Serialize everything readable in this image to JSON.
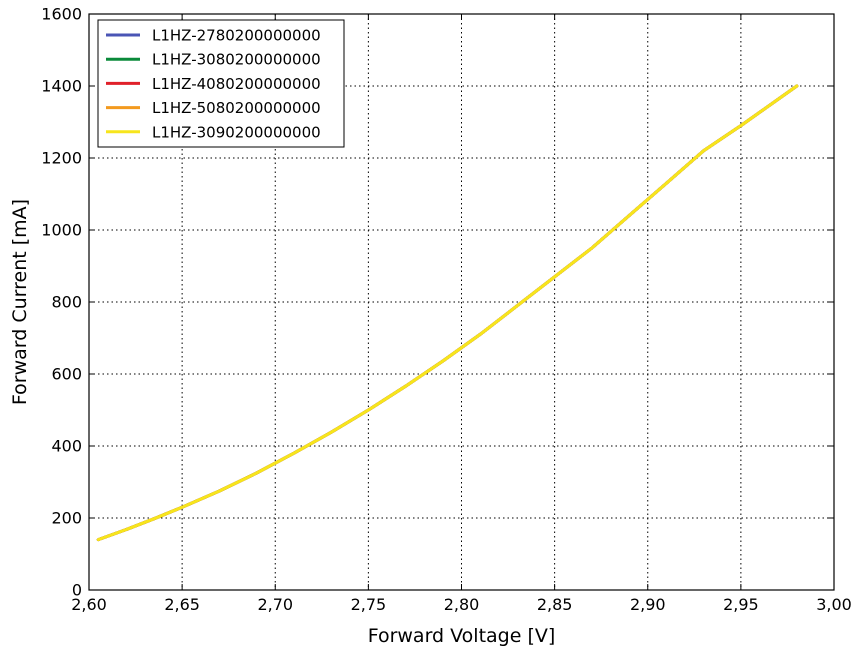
{
  "chart_data": {
    "type": "line",
    "title": "",
    "xlabel": "Forward Voltage [V]",
    "ylabel": "Forward Current [mA]",
    "xlim": [
      2.6,
      3.0
    ],
    "ylim": [
      0,
      1600
    ],
    "grid": true,
    "legend_position": "top-left",
    "x_ticks": [
      "2,60",
      "2,65",
      "2,70",
      "2,75",
      "2,80",
      "2,85",
      "2,90",
      "2,95",
      "3,00"
    ],
    "y_ticks": [
      "0",
      "200",
      "400",
      "600",
      "800",
      "1000",
      "1200",
      "1400",
      "1600"
    ],
    "x": [
      2.605,
      2.62,
      2.635,
      2.65,
      2.67,
      2.69,
      2.71,
      2.73,
      2.75,
      2.77,
      2.79,
      2.81,
      2.83,
      2.85,
      2.87,
      2.89,
      2.91,
      2.93,
      2.95,
      2.98
    ],
    "series": [
      {
        "name": "L1HZ-2780200000000",
        "color": "#4a55b5",
        "values": [
          140,
          168,
          198,
          230,
          275,
          325,
          380,
          438,
          500,
          566,
          636,
          710,
          790,
          870,
          950,
          1040,
          1130,
          1220,
          1290,
          1400
        ]
      },
      {
        "name": "L1HZ-3080200000000",
        "color": "#0a8a3a",
        "values": [
          140,
          168,
          198,
          230,
          275,
          325,
          380,
          438,
          500,
          566,
          636,
          710,
          790,
          870,
          950,
          1040,
          1130,
          1220,
          1290,
          1400
        ]
      },
      {
        "name": "L1HZ-4080200000000",
        "color": "#e0202a",
        "values": [
          140,
          168,
          198,
          230,
          275,
          325,
          380,
          438,
          500,
          566,
          636,
          710,
          790,
          870,
          950,
          1040,
          1130,
          1220,
          1290,
          1400
        ]
      },
      {
        "name": "L1HZ-5080200000000",
        "color": "#f39a1e",
        "values": [
          140,
          168,
          198,
          230,
          275,
          325,
          380,
          438,
          500,
          566,
          636,
          710,
          790,
          870,
          950,
          1040,
          1130,
          1220,
          1290,
          1400
        ]
      },
      {
        "name": "L1HZ-3090200000000",
        "color": "#f7e51c",
        "values": [
          140,
          168,
          198,
          230,
          275,
          325,
          380,
          438,
          500,
          566,
          636,
          710,
          790,
          870,
          950,
          1040,
          1130,
          1220,
          1290,
          1400
        ]
      }
    ]
  }
}
